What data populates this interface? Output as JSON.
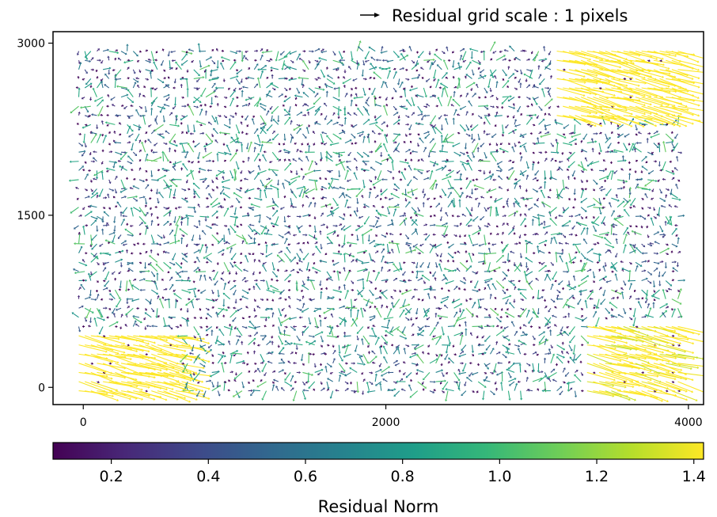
{
  "chart_data": {
    "type": "quiver",
    "legend": {
      "label": "Residual grid scale : 1 pixels",
      "position": "top-right"
    },
    "xlim": [
      -200,
      4100
    ],
    "ylim": [
      -150,
      3100
    ],
    "xticks": [
      0,
      2000,
      4000
    ],
    "xtick_labels": [
      "0",
      "2000",
      "4000"
    ],
    "yticks": [
      0,
      1500,
      3000
    ],
    "ytick_labels": [
      "0",
      "1500",
      "3000"
    ],
    "grid": false,
    "colorbar": {
      "label": "Residual Norm",
      "colormap": "viridis",
      "range": [
        0.08,
        1.42
      ],
      "ticks": [
        0.2,
        0.4,
        0.6,
        0.8,
        1.0,
        1.2,
        1.4
      ],
      "tick_labels": [
        "0.2",
        "0.4",
        "0.6",
        "0.8",
        "1.0",
        "1.2",
        "1.4"
      ],
      "orientation": "horizontal"
    },
    "field": {
      "x_range": [
        -30,
        3950
      ],
      "y_range": [
        -30,
        2950
      ],
      "x_spacing": 40,
      "y_spacing": 80,
      "high_residual_regions": [
        {
          "label": "top-right corner",
          "x": [
            3100,
            3950
          ],
          "y": [
            2350,
            2950
          ],
          "norm": 1.4
        },
        {
          "label": "bottom-left corner",
          "x": [
            -200,
            650
          ],
          "y": [
            -100,
            500
          ],
          "norm": 1.4
        },
        {
          "label": "bottom-right corner",
          "x": [
            3300,
            4100
          ],
          "y": [
            -100,
            600
          ],
          "norm": 1.3
        }
      ]
    }
  },
  "colors": {
    "axes": "#000000",
    "viridis": [
      "#440154",
      "#482878",
      "#3e4989",
      "#31688e",
      "#26828e",
      "#1f9e89",
      "#35b779",
      "#6ece58",
      "#b5de2b",
      "#fde725"
    ]
  }
}
